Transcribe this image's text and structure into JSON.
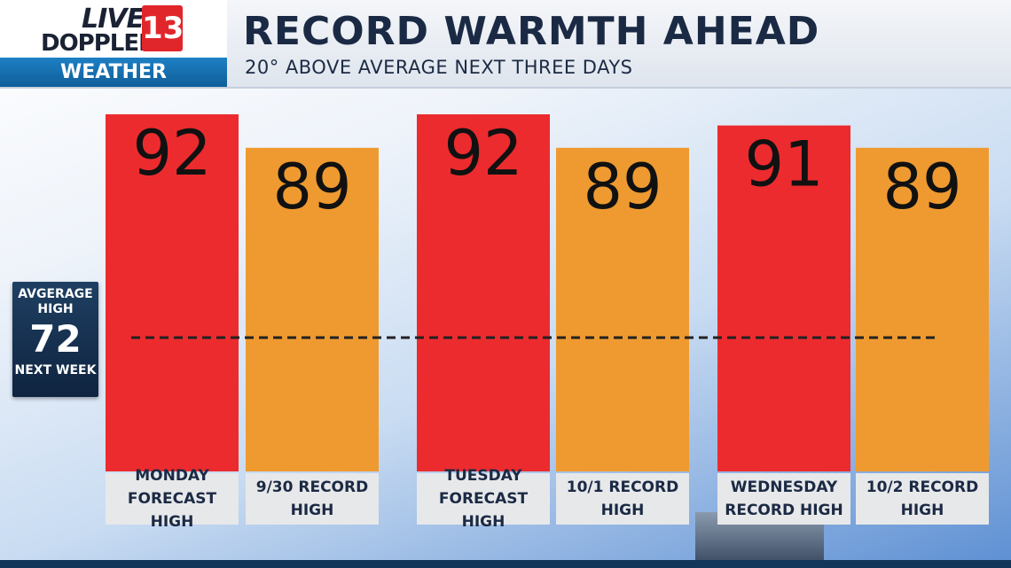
{
  "header": {
    "logo_live": "LIVE",
    "logo_doppler": "DOPPLER",
    "logo_number": "13",
    "logo_section": "WEATHER",
    "title": "RECORD WARMTH AHEAD",
    "subtitle": "20° ABOVE AVERAGE NEXT THREE DAYS"
  },
  "average_box": {
    "label": "AVGERAGE HIGH",
    "value": "72",
    "period": "NEXT WEEK"
  },
  "colors": {
    "forecast_bar": "#ec2b2f",
    "record_bar": "#ef9a30",
    "average_line": "#222222"
  },
  "chart_data": {
    "type": "bar",
    "categories": [
      "MONDAY FORECAST HIGH",
      "9/30 RECORD HIGH",
      "TUESDAY FORECAST HIGH",
      "10/1 RECORD HIGH",
      "WEDNESDAY RECORD HIGH",
      "10/2 RECORD HIGH"
    ],
    "values": [
      92,
      89,
      92,
      89,
      91,
      89
    ],
    "value_labels": [
      "92",
      "89",
      "92",
      "89",
      "91",
      "89"
    ],
    "bar_kinds": [
      "forecast",
      "record",
      "forecast",
      "record",
      "forecast",
      "record"
    ],
    "average_line_value": 72,
    "title": "RECORD WARMTH AHEAD",
    "subtitle": "20° ABOVE AVERAGE NEXT THREE DAYS",
    "grid": false
  }
}
